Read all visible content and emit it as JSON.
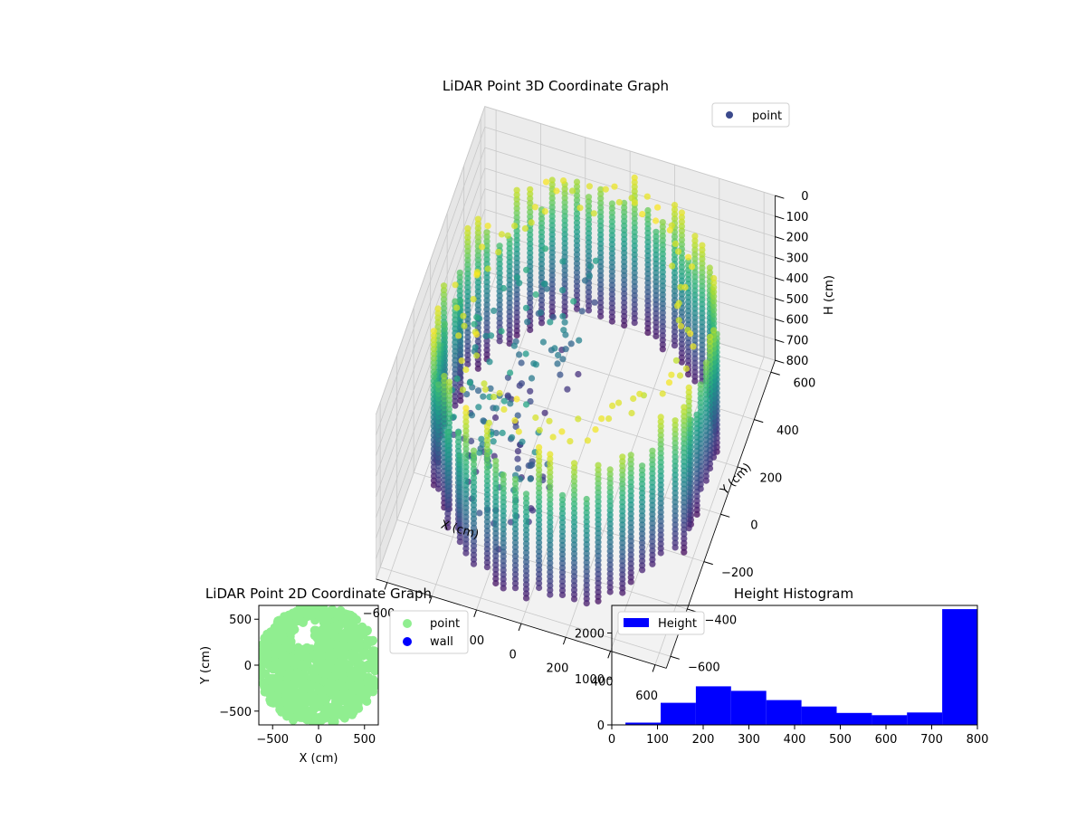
{
  "chart_data": [
    {
      "type": "scatter",
      "subtype": "3d",
      "title": "LiDAR Point 3D Coordinate Graph",
      "xlabel": "X (cm)",
      "ylabel": "Y (cm)",
      "zlabel": "H (cm)",
      "xticks": [
        "−600",
        "−400",
        "−200",
        "0",
        "200",
        "400",
        "600"
      ],
      "yticks": [
        "600",
        "400",
        "200",
        "0",
        "−200",
        "−400",
        "−600"
      ],
      "zticks": [
        "0",
        "100",
        "200",
        "300",
        "400",
        "500",
        "600",
        "700",
        "800"
      ],
      "xlim": [
        -600,
        600
      ],
      "ylim": [
        -600,
        600
      ],
      "zlim": [
        0,
        800
      ],
      "zinverted": true,
      "colormap": "viridis",
      "legend": {
        "placement": "top-right",
        "entries": [
          {
            "label": "point",
            "color": "#3b4a8c"
          }
        ]
      },
      "grid": true,
      "series": [
        {
          "name": "point",
          "shape": "ring of vertical point columns around the room wall, radius ~580 cm, heights 0–800 cm"
        }
      ]
    },
    {
      "type": "scatter",
      "title": "LiDAR Point 2D Coordinate Graph",
      "xlabel": "X (cm)",
      "ylabel": "Y (cm)",
      "xticks": [
        "−500",
        "0",
        "500"
      ],
      "yticks": [
        "500",
        "0",
        "−500"
      ],
      "xlim": [
        -650,
        650
      ],
      "ylim": [
        -650,
        650
      ],
      "legend": {
        "placement": "outside-right",
        "entries": [
          {
            "label": "point",
            "color": "#90ee90"
          },
          {
            "label": "wall",
            "color": "#0000ff"
          }
        ]
      },
      "series": [
        {
          "name": "point",
          "color": "#90ee90"
        },
        {
          "name": "wall",
          "color": "#0000ff"
        }
      ]
    },
    {
      "type": "bar",
      "subtype": "histogram",
      "title": "Height Histogram",
      "xlabel": "",
      "ylabel": "",
      "xticks": [
        "0",
        "100",
        "200",
        "300",
        "400",
        "500",
        "600",
        "700",
        "800"
      ],
      "yticks": [
        "0",
        "1000",
        "2000"
      ],
      "xlim": [
        0,
        800
      ],
      "ylim": [
        0,
        2600
      ],
      "color": "#0000ff",
      "legend": {
        "placement": "top-left",
        "entries": [
          {
            "label": "Height",
            "color": "#0000ff"
          }
        ]
      },
      "bin_edges": [
        30,
        107,
        184,
        261,
        338,
        415,
        492,
        569,
        646,
        723,
        800
      ],
      "values": [
        50,
        480,
        840,
        740,
        540,
        400,
        260,
        210,
        270,
        2520
      ]
    }
  ]
}
